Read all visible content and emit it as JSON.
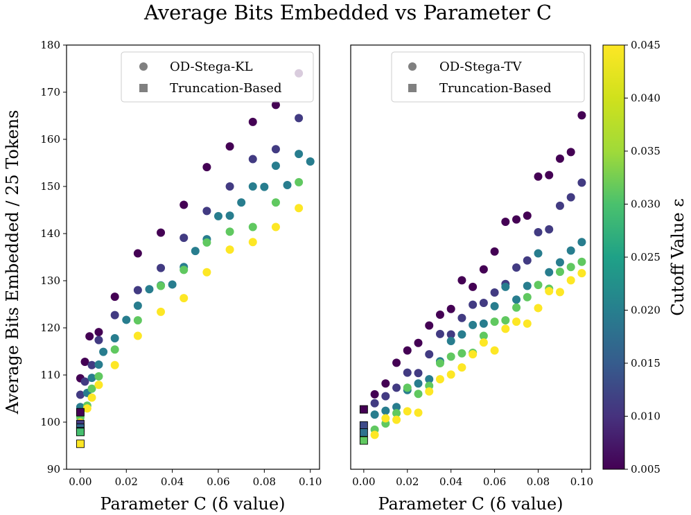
{
  "chart_data": {
    "type": "scatter",
    "title": "Average Bits Embedded vs Parameter C",
    "colorbar": {
      "label": "Cutoff Value ε",
      "range": [
        0.005,
        0.045
      ],
      "ticks": [
        "0.005",
        "0.010",
        "0.015",
        "0.020",
        "0.025",
        "0.030",
        "0.035",
        "0.040",
        "0.045"
      ],
      "colormap": "viridis"
    },
    "panels": [
      {
        "xlabel": "Parameter C (δ value)",
        "ylabel": "Average Bits Embedded / 25 Tokens",
        "xlim": [
          -0.006,
          0.104
        ],
        "ylim": [
          90,
          180
        ],
        "xticks": [
          "0.00",
          "0.02",
          "0.04",
          "0.06",
          "0.08",
          "0.10"
        ],
        "yticks": [
          "90",
          "100",
          "110",
          "120",
          "130",
          "140",
          "150",
          "160",
          "170",
          "180"
        ],
        "legend": [
          "OD-Stega-KL",
          "Truncation-Based"
        ],
        "legend_location": "top-right",
        "series": [
          {
            "name": "OD-Stega-KL eps=0.005",
            "epsilon": 0.005,
            "marker": "circle",
            "x": [
              0.0,
              0.002,
              0.004,
              0.008,
              0.015,
              0.025,
              0.035,
              0.045,
              0.055,
              0.065,
              0.075,
              0.085,
              0.095
            ],
            "y": [
              109.3,
              112.8,
              118.2,
              119.1,
              126.6,
              135.8,
              140.2,
              146.1,
              154.1,
              158.5,
              163.7,
              167.3,
              174.0
            ]
          },
          {
            "name": "OD-Stega-KL eps=0.012",
            "epsilon": 0.012,
            "marker": "circle",
            "x": [
              0.0,
              0.002,
              0.005,
              0.008,
              0.015,
              0.025,
              0.035,
              0.045,
              0.055,
              0.065,
              0.075,
              0.085,
              0.095
            ],
            "y": [
              105.8,
              108.6,
              112.1,
              117.4,
              122.7,
              128.0,
              132.7,
              139.1,
              144.8,
              150.0,
              155.8,
              157.9,
              164.5
            ]
          },
          {
            "name": "OD-Stega-KL eps=0.022",
            "epsilon": 0.022,
            "marker": "circle",
            "x": [
              0.0,
              0.003,
              0.005,
              0.008,
              0.01,
              0.015,
              0.02,
              0.025,
              0.03,
              0.035,
              0.04,
              0.045,
              0.05,
              0.055,
              0.06,
              0.065,
              0.07,
              0.075,
              0.08,
              0.085,
              0.09,
              0.095,
              0.1
            ],
            "y": [
              103.2,
              106.2,
              109.4,
              112.2,
              114.9,
              117.8,
              121.7,
              124.7,
              128.2,
              129.0,
              129.2,
              132.9,
              136.3,
              138.8,
              143.7,
              143.8,
              146.6,
              150.0,
              149.9,
              154.4,
              150.3,
              156.9,
              155.3
            ]
          },
          {
            "name": "OD-Stega-KL eps=0.035",
            "epsilon": 0.035,
            "marker": "circle",
            "x": [
              0.0,
              0.003,
              0.005,
              0.008,
              0.015,
              0.025,
              0.035,
              0.045,
              0.055,
              0.065,
              0.075,
              0.085,
              0.095
            ],
            "y": [
              101.0,
              103.5,
              107.1,
              109.7,
              115.4,
              121.6,
              128.9,
              132.3,
              138.1,
              140.4,
              141.4,
              146.6,
              150.9
            ]
          },
          {
            "name": "OD-Stega-KL eps=0.045",
            "epsilon": 0.045,
            "marker": "circle",
            "x": [
              0.0,
              0.003,
              0.005,
              0.008,
              0.015,
              0.025,
              0.035,
              0.045,
              0.055,
              0.065,
              0.075,
              0.085,
              0.095
            ],
            "y": [
              99.9,
              102.9,
              105.2,
              107.9,
              112.1,
              118.3,
              123.4,
              126.3,
              131.8,
              136.6,
              138.2,
              141.4,
              145.4
            ]
          },
          {
            "name": "Truncation-Based",
            "marker": "square",
            "x": [
              0.0,
              0.0,
              0.0,
              0.0,
              0.0,
              0.0
            ],
            "y": [
              102.1,
              99.6,
              98.8,
              98.1,
              97.9,
              95.4
            ],
            "epsilon": [
              0.005,
              0.012,
              0.018,
              0.022,
              0.033,
              0.045
            ]
          }
        ]
      },
      {
        "xlabel": "Parameter C (δ value)",
        "ylabel": "",
        "xlim": [
          -0.006,
          0.104
        ],
        "ylim": [
          90,
          180
        ],
        "xticks": [
          "0.00",
          "0.02",
          "0.04",
          "0.06",
          "0.08",
          "0.10"
        ],
        "yticks": [],
        "legend": [
          "OD-Stega-TV",
          "Truncation-Based"
        ],
        "legend_location": "top-right",
        "series": [
          {
            "name": "OD-Stega-TV eps=0.005",
            "epsilon": 0.005,
            "marker": "circle",
            "x": [
              0.005,
              0.01,
              0.015,
              0.02,
              0.025,
              0.03,
              0.035,
              0.04,
              0.045,
              0.05,
              0.055,
              0.06,
              0.065,
              0.07,
              0.075,
              0.08,
              0.085,
              0.09,
              0.095,
              0.1
            ],
            "y": [
              105.9,
              108.2,
              112.6,
              115.2,
              116.8,
              120.5,
              122.8,
              124.0,
              130.1,
              128.7,
              132.4,
              136.2,
              142.5,
              143.0,
              143.8,
              152.1,
              152.4,
              155.9,
              157.3,
              165.1
            ]
          },
          {
            "name": "OD-Stega-TV eps=0.012",
            "epsilon": 0.012,
            "marker": "circle",
            "x": [
              0.005,
              0.01,
              0.015,
              0.02,
              0.025,
              0.03,
              0.035,
              0.04,
              0.045,
              0.05,
              0.055,
              0.06,
              0.065,
              0.07,
              0.075,
              0.08,
              0.085,
              0.09,
              0.095,
              0.1
            ],
            "y": [
              104.0,
              105.5,
              107.3,
              110.5,
              110.4,
              114.4,
              118.7,
              118.6,
              122.1,
              124.9,
              125.3,
              127.5,
              129.3,
              132.8,
              134.3,
              140.3,
              140.9,
              145.9,
              147.7,
              150.8
            ]
          },
          {
            "name": "OD-Stega-TV eps=0.022",
            "epsilon": 0.022,
            "marker": "circle",
            "x": [
              0.005,
              0.01,
              0.015,
              0.02,
              0.025,
              0.03,
              0.035,
              0.04,
              0.045,
              0.05,
              0.055,
              0.06,
              0.065,
              0.07,
              0.075,
              0.08,
              0.085,
              0.09,
              0.095,
              0.1
            ],
            "y": [
              101.6,
              102.4,
              103.2,
              106.8,
              108.2,
              109.1,
              112.9,
              117.2,
              118.6,
              120.6,
              120.9,
              124.6,
              128.7,
              126.0,
              128.9,
              135.8,
              131.8,
              133.9,
              136.4,
              138.2
            ]
          },
          {
            "name": "OD-Stega-TV eps=0.035",
            "epsilon": 0.035,
            "marker": "circle",
            "x": [
              0.005,
              0.01,
              0.015,
              0.02,
              0.025,
              0.03,
              0.035,
              0.04,
              0.045,
              0.05,
              0.055,
              0.06,
              0.065,
              0.07,
              0.075,
              0.08,
              0.085,
              0.09,
              0.095,
              0.1
            ],
            "y": [
              98.4,
              99.7,
              101.9,
              107.3,
              106.0,
              107.7,
              112.5,
              113.9,
              114.6,
              114.7,
              118.3,
              121.3,
              121.6,
              124.3,
              126.5,
              129.1,
              128.3,
              131.9,
              132.9,
              134.0
            ]
          },
          {
            "name": "OD-Stega-TV eps=0.045",
            "epsilon": 0.045,
            "marker": "circle",
            "x": [
              0.005,
              0.01,
              0.015,
              0.02,
              0.025,
              0.03,
              0.035,
              0.04,
              0.045,
              0.05,
              0.055,
              0.06,
              0.065,
              0.07,
              0.075,
              0.08,
              0.085,
              0.09,
              0.095,
              0.1
            ],
            "y": [
              97.3,
              100.8,
              100.5,
              102.3,
              102.0,
              106.5,
              109.1,
              110.1,
              111.6,
              114.4,
              116.9,
              115.2,
              119.8,
              121.3,
              120.9,
              124.2,
              127.8,
              127.6,
              130.1,
              131.6
            ]
          },
          {
            "name": "Truncation-Based",
            "marker": "square",
            "x": [
              0.0,
              0.0,
              0.0,
              0.0
            ],
            "y": [
              102.7,
              99.3,
              97.8,
              96.1
            ],
            "epsilon": [
              0.005,
              0.014,
              0.02,
              0.035
            ]
          }
        ]
      }
    ]
  }
}
